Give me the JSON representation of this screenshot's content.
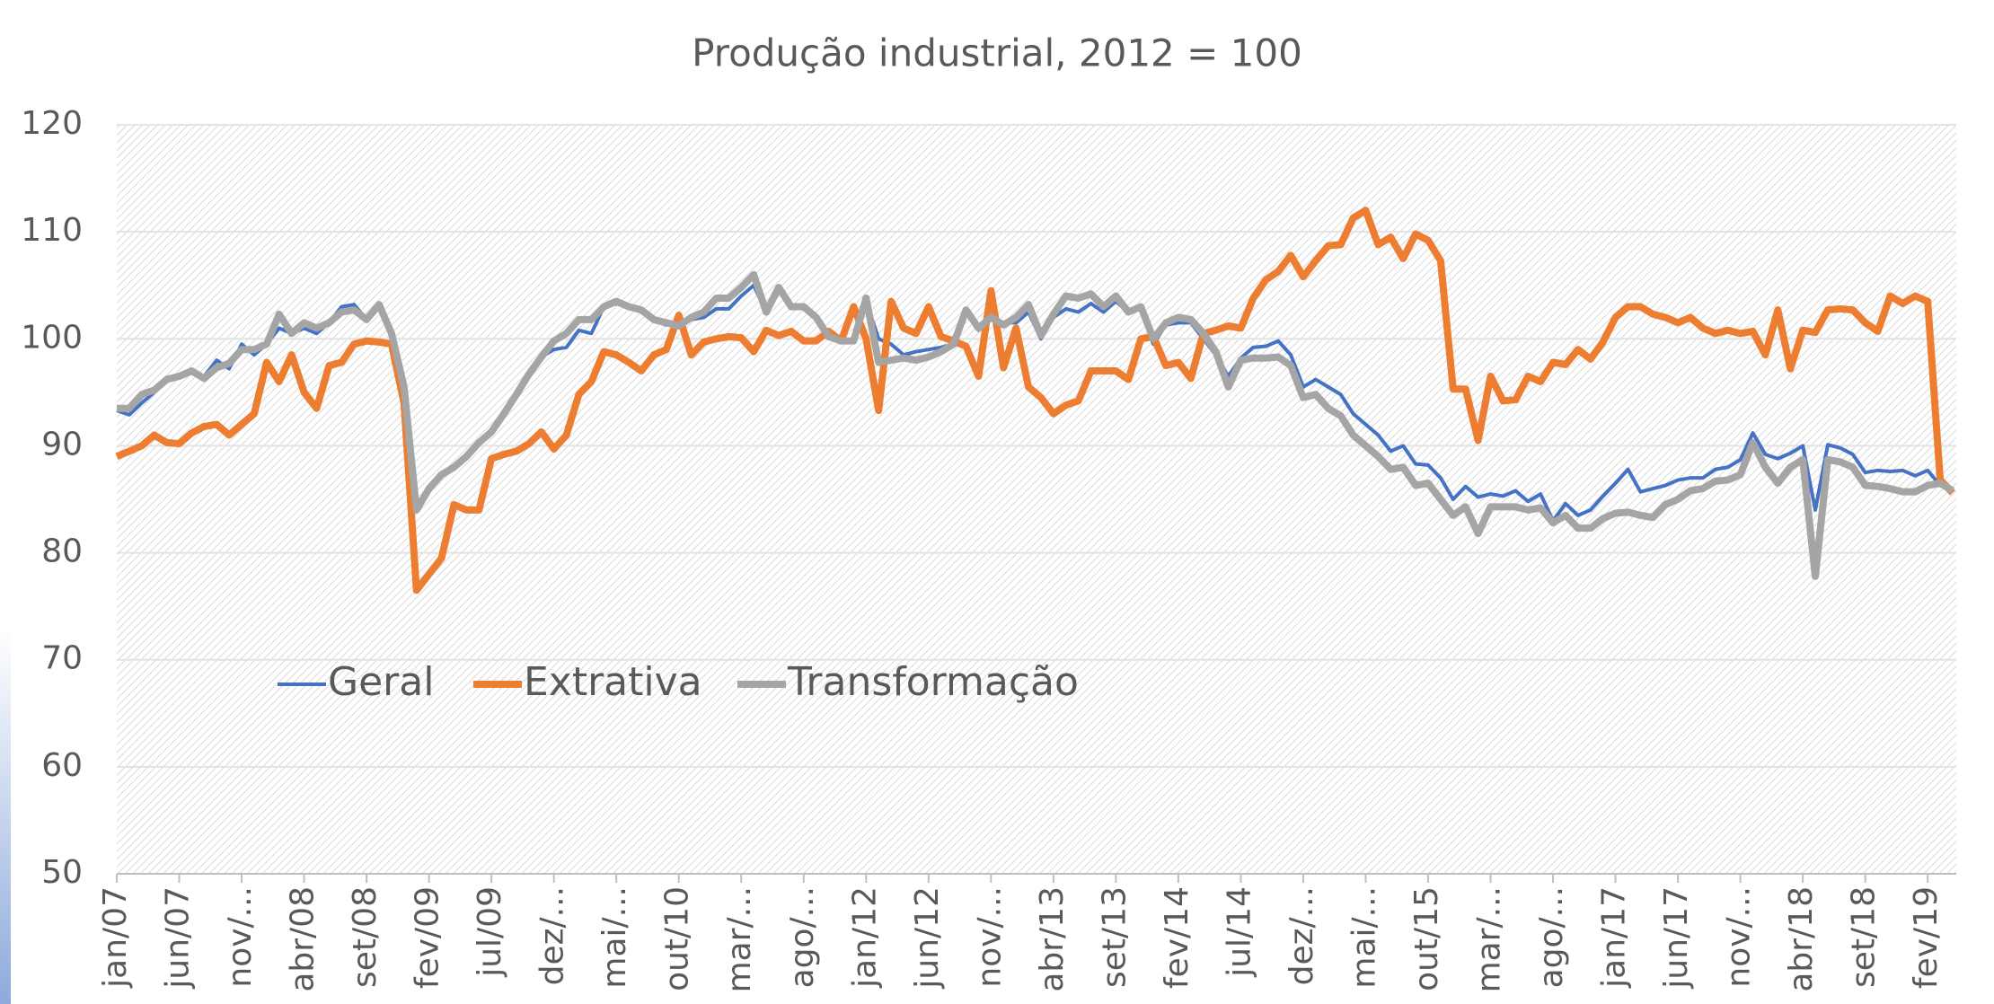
{
  "chart_data": {
    "type": "line",
    "title": "Produção industrial, 2012 = 100",
    "categories": [
      "jan/07",
      null,
      null,
      null,
      null,
      "jun/07",
      null,
      null,
      null,
      null,
      "nov/...",
      null,
      null,
      null,
      null,
      "abr/08",
      null,
      null,
      null,
      null,
      "set/08",
      null,
      null,
      null,
      null,
      "fev/09",
      null,
      null,
      null,
      null,
      "jul/09",
      null,
      null,
      null,
      null,
      "dez/...",
      null,
      null,
      null,
      null,
      "mai/...",
      null,
      null,
      null,
      null,
      "out/10",
      null,
      null,
      null,
      null,
      "mar/...",
      null,
      null,
      null,
      null,
      "ago/...",
      null,
      null,
      null,
      null,
      "jan/12",
      null,
      null,
      null,
      null,
      "jun/12",
      null,
      null,
      null,
      null,
      "nov/...",
      null,
      null,
      null,
      null,
      "abr/13",
      null,
      null,
      null,
      null,
      "set/13",
      null,
      null,
      null,
      null,
      "fev/14",
      null,
      null,
      null,
      null,
      "jul/14",
      null,
      null,
      null,
      null,
      "dez/...",
      null,
      null,
      null,
      null,
      "mai/...",
      null,
      null,
      null,
      null,
      "out/15",
      null,
      null,
      null,
      null,
      "mar/...",
      null,
      null,
      null,
      null,
      "ago/...",
      null,
      null,
      null,
      null,
      "jan/17",
      null,
      null,
      null,
      null,
      "jun/17",
      null,
      null,
      null,
      null,
      "nov/...",
      null,
      null,
      null,
      null,
      "abr/18",
      null,
      null,
      null,
      null,
      "set/18",
      null,
      null,
      null,
      null,
      "fev/19",
      null,
      null
    ],
    "series": [
      {
        "name": "Geral",
        "color": "#4472c4",
        "width": 4,
        "values": [
          93.3,
          92.9,
          94,
          95,
          96.2,
          96.5,
          97,
          96.5,
          98,
          97.2,
          99.5,
          98.5,
          99.5,
          101,
          100.5,
          101,
          100.5,
          101.5,
          103,
          103.2,
          101.8,
          103,
          100.5,
          95,
          84.5,
          86,
          87.3,
          88,
          89,
          90.3,
          91.3,
          93,
          94.8,
          96.7,
          98.3,
          99,
          99.2,
          100.8,
          100.5,
          103,
          103.3,
          103,
          102.5,
          101.7,
          101.3,
          101.5,
          101.8,
          102,
          102.8,
          102.8,
          104,
          105,
          102.5,
          104.5,
          103,
          102.8,
          102,
          100.2,
          99.8,
          100,
          103.5,
          100,
          99.5,
          98.5,
          98.8,
          99,
          99.2,
          99.5,
          102.5,
          100.8,
          102,
          101.5,
          101.5,
          102.5,
          100,
          102,
          102.8,
          102.5,
          103.3,
          102.5,
          103.5,
          102.5,
          102.8,
          99.5,
          101.3,
          101.5,
          101.5,
          100,
          98.5,
          96.5,
          98.2,
          99.2,
          99.3,
          99.8,
          98.5,
          95.5,
          96.2,
          95.5,
          94.8,
          93,
          92,
          91,
          89.5,
          90,
          88.3,
          88.2,
          87,
          85,
          86.2,
          85.2,
          85.5,
          85.3,
          85.8,
          84.8,
          85.5,
          83,
          84.6,
          83.5,
          84,
          85.3,
          86.5,
          87.8,
          85.7,
          86,
          86.3,
          86.8,
          87,
          87,
          87.8,
          88,
          88.7,
          91.2,
          89.2,
          88.8,
          89.3,
          90,
          84,
          90.1,
          89.8,
          89.2,
          87.5,
          87.7,
          87.6,
          87.7,
          87.2,
          87.7,
          86.3,
          86
        ]
      },
      {
        "name": "Extrativa",
        "color": "#ed7d31",
        "width": 8,
        "values": [
          89,
          89.5,
          90,
          91,
          90.3,
          90.2,
          91.2,
          91.8,
          92,
          91,
          92,
          93,
          97.8,
          96,
          98.5,
          95,
          93.5,
          97.5,
          97.8,
          99.5,
          99.8,
          99.7,
          99.5,
          94,
          76.5,
          78,
          79.5,
          84.5,
          84,
          84,
          88.8,
          89.2,
          89.5,
          90.2,
          91.3,
          89.7,
          91,
          94.8,
          96,
          98.8,
          98.5,
          97.8,
          97,
          98.5,
          99,
          102.2,
          98.5,
          99.7,
          100,
          100.2,
          100.1,
          98.8,
          100.8,
          100.3,
          100.7,
          99.8,
          99.8,
          100.7,
          99.8,
          103,
          100,
          93.3,
          103.5,
          101,
          100.5,
          103,
          100.2,
          99.8,
          99.3,
          96.5,
          104.5,
          97.3,
          101,
          95.5,
          94.5,
          93,
          93.8,
          94.2,
          97,
          97,
          97,
          96.2,
          100,
          100.2,
          97.5,
          97.8,
          96.3,
          100.5,
          100.8,
          101.2,
          101,
          103.8,
          105.5,
          106.3,
          107.8,
          105.8,
          107.3,
          108.7,
          108.8,
          111.3,
          112,
          108.8,
          109.5,
          107.5,
          109.8,
          109.2,
          107.3,
          95.3,
          95.3,
          90.5,
          96.5,
          94.2,
          94.3,
          96.5,
          96,
          97.8,
          97.6,
          99,
          98.1,
          99.7,
          102,
          103,
          103,
          102.3,
          102,
          101.5,
          102,
          101,
          100.5,
          100.8,
          100.5,
          100.7,
          98.5,
          102.7,
          97.2,
          100.8,
          100.6,
          102.7,
          102.8,
          102.7,
          101.5,
          100.7,
          104,
          103.3,
          104,
          103.5,
          86.8,
          85.6
        ]
      },
      {
        "name": "Transformação",
        "color": "#a5a5a5",
        "width": 8,
        "values": [
          93.5,
          93.5,
          94.8,
          95.2,
          96.2,
          96.5,
          97,
          96.3,
          97.3,
          97.7,
          99,
          99,
          99.5,
          102.3,
          100.5,
          101.5,
          101,
          101.5,
          102.5,
          102.7,
          101.8,
          103.2,
          100.5,
          95.5,
          84,
          86,
          87.3,
          88,
          89,
          90.3,
          91.3,
          93,
          94.8,
          96.7,
          98.3,
          99.8,
          100.5,
          101.8,
          101.8,
          103,
          103.5,
          103,
          102.7,
          101.8,
          101.5,
          101.2,
          102,
          102.5,
          103.8,
          103.8,
          104.8,
          106,
          102.5,
          104.8,
          103,
          103,
          102,
          100.2,
          99.8,
          99.8,
          103.8,
          97.8,
          98,
          98.2,
          98,
          98.3,
          98.8,
          99.5,
          102.7,
          101,
          102,
          101.3,
          102,
          103.2,
          100.3,
          102.3,
          104,
          103.8,
          104.2,
          103,
          104,
          102.5,
          103,
          100,
          101.5,
          102,
          101.8,
          100.5,
          98.8,
          95.5,
          98,
          98.2,
          98.2,
          98.3,
          97.5,
          94.5,
          94.8,
          93.5,
          92.8,
          91,
          90,
          89,
          87.8,
          88,
          86.3,
          86.5,
          85,
          83.5,
          84.3,
          81.8,
          84.3,
          84.3,
          84.3,
          84,
          84.2,
          82.8,
          83.5,
          82.3,
          82.3,
          83.2,
          83.7,
          83.8,
          83.5,
          83.3,
          84.5,
          85,
          85.8,
          86,
          86.7,
          86.8,
          87.3,
          90.3,
          88,
          86.5,
          88,
          88.7,
          77.8,
          88.7,
          88.5,
          88,
          86.3,
          86.2,
          86,
          85.7,
          85.7,
          86.3,
          86.5,
          85.8
        ]
      }
    ],
    "ylim": [
      50,
      120
    ],
    "yticks": [
      50,
      60,
      70,
      80,
      90,
      100,
      110,
      120
    ],
    "grid": true,
    "legend": "left"
  }
}
